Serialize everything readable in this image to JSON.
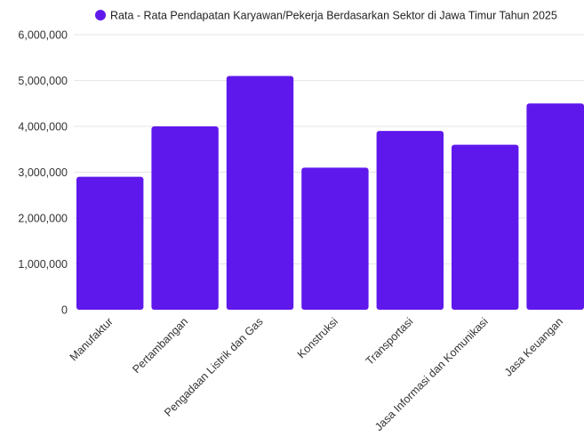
{
  "chart_data": {
    "type": "bar",
    "title": "",
    "xlabel": "",
    "ylabel": "",
    "legend": {
      "position": "top",
      "entries": [
        "Rata - Rata Pendapatan Karyawan/Pekerja Berdasarkan Sektor di Jawa Timur Tahun 2025"
      ]
    },
    "categories": [
      "Manufaktur",
      "Pertambangan",
      "Pengadaan Listrik dan Gas",
      "Konstruksi",
      "Transportasi",
      "Jasa Informasi dan Komunikasi",
      "Jasa Keuangan"
    ],
    "series": [
      {
        "name": "Rata - Rata Pendapatan Karyawan/Pekerja Berdasarkan Sektor di Jawa Timur Tahun 2025",
        "values": [
          2900000,
          4000000,
          5100000,
          3100000,
          3900000,
          3600000,
          4500000
        ],
        "color": "#5f18ec"
      }
    ],
    "ylim": [
      0,
      6000000
    ],
    "yticks": [
      "0",
      "1,000,000",
      "2,000,000",
      "3,000,000",
      "4,000,000",
      "5,000,000",
      "6,000,000"
    ],
    "ytick_values": [
      0,
      1000000,
      2000000,
      3000000,
      4000000,
      5000000,
      6000000
    ],
    "grid": true
  }
}
